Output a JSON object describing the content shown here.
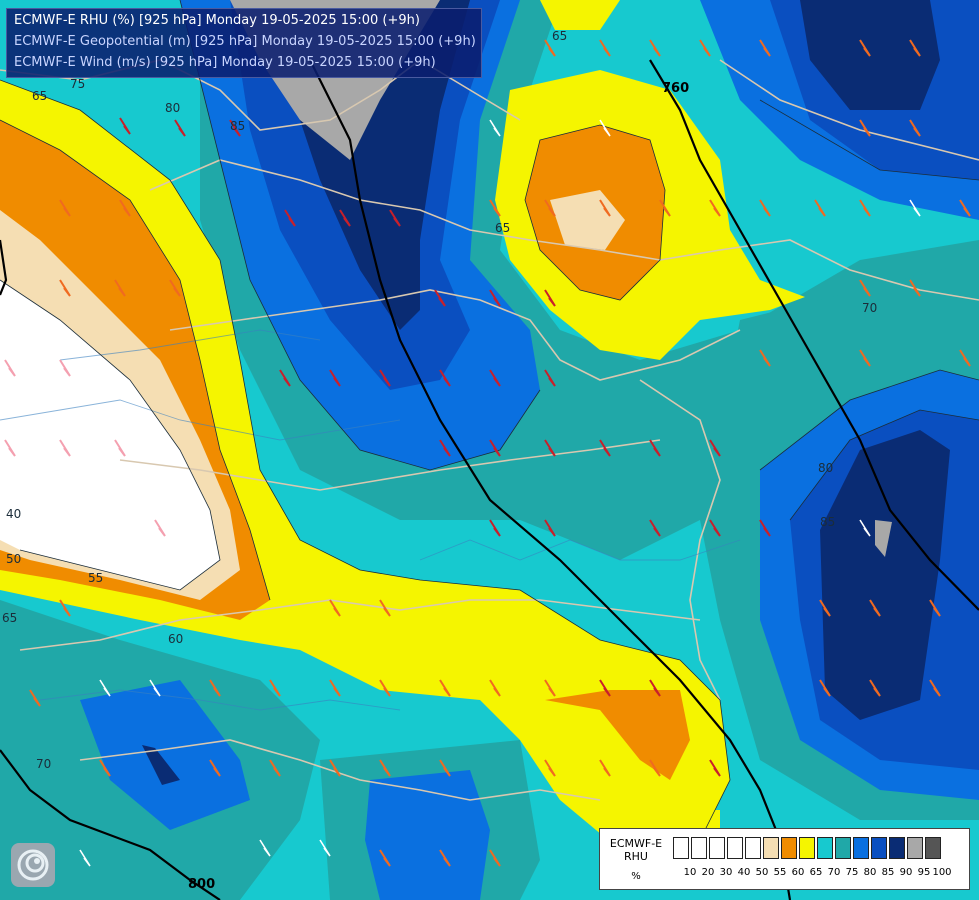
{
  "titles": {
    "line1": "ECMWF-E RHU (%) [925 hPa] Monday 19-05-2025 15:00 (+9h)",
    "line2": "ECMWF-E Geopotential (m) [925 hPa] Monday 19-05-2025 15:00 (+9h)",
    "line3": "ECMWF-E Wind (m/s) [925 hPa] Monday 19-05-2025 15:00 (+9h)"
  },
  "legend": {
    "title_line1": "ECMWF-E",
    "title_line2": "RHU",
    "unit": "%",
    "levels": [
      "10",
      "20",
      "30",
      "40",
      "50",
      "55",
      "60",
      "65",
      "70",
      "75",
      "80",
      "85",
      "90",
      "95",
      "100"
    ],
    "colors": [
      "#ffffff",
      "#ffffff",
      "#ffffff",
      "#ffffff",
      "#ffffff",
      "#f5deb3",
      "#f08c00",
      "#f5f500",
      "#17c9cf",
      "#20a8a8",
      "#0a70e0",
      "#0a4fc0",
      "#0a2c74",
      "#a8a8a8",
      "#555555"
    ]
  },
  "contour_labels": {
    "rhu": [
      "65",
      "75",
      "80",
      "85",
      "65",
      "65",
      "70",
      "80",
      "85",
      "40",
      "50",
      "55",
      "65",
      "60",
      "70"
    ],
    "geopotential": [
      "760",
      "800"
    ]
  },
  "logo": "ecmwf-swirl-logo-icon"
}
